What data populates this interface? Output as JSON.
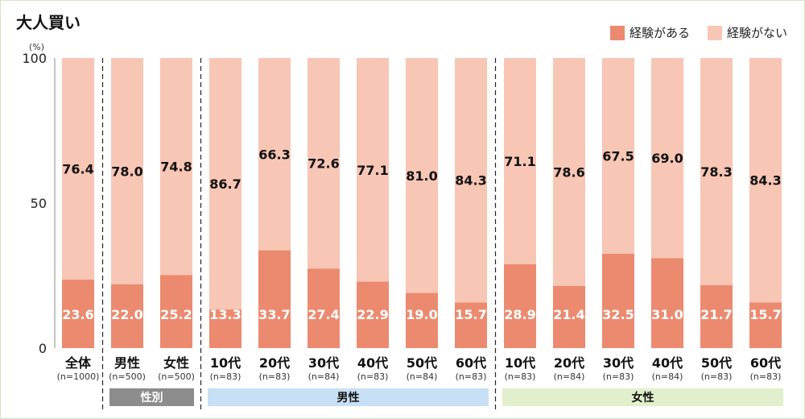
{
  "title": "大人買い",
  "unit_label": "(%)",
  "legend": [
    {
      "label": "経験がある",
      "color": "#ec8a70"
    },
    {
      "label": "経験がない",
      "color": "#f7c6b4"
    }
  ],
  "chart_data": {
    "type": "bar",
    "stacked": true,
    "ylim": [
      0,
      100
    ],
    "yticks": [
      "0",
      "50",
      "100"
    ],
    "categories": [
      "全体",
      "男性",
      "女性",
      "10代",
      "20代",
      "30代",
      "40代",
      "50代",
      "60代",
      "10代",
      "20代",
      "30代",
      "40代",
      "50代",
      "60代"
    ],
    "n_labels": [
      "(n=1000)",
      "(n=500)",
      "(n=500)",
      "(n=83)",
      "(n=83)",
      "(n=84)",
      "(n=83)",
      "(n=84)",
      "(n=83)",
      "(n=83)",
      "(n=84)",
      "(n=83)",
      "(n=84)",
      "(n=83)",
      "(n=83)"
    ],
    "series": [
      {
        "name": "経験がある",
        "color": "#ec8a70",
        "label_color": "#ffffff",
        "values": [
          23.6,
          22.0,
          25.2,
          13.3,
          33.7,
          27.4,
          22.9,
          19.0,
          15.7,
          28.9,
          21.4,
          32.5,
          31.0,
          21.7,
          15.7
        ],
        "labels": [
          "23.6",
          "22.0",
          "25.2",
          "13.3",
          "33.7",
          "27.4",
          "22.9",
          "19.0",
          "15.7",
          "28.9",
          "21.4",
          "32.5",
          "31.0",
          "21.7",
          "15.7"
        ]
      },
      {
        "name": "経験がない",
        "color": "#f7c6b4",
        "label_color": "#111111",
        "values": [
          76.4,
          78.0,
          74.8,
          86.7,
          66.3,
          72.6,
          77.1,
          81.0,
          84.3,
          71.1,
          78.6,
          67.5,
          69.0,
          78.3,
          84.3
        ],
        "labels": [
          "76.4",
          "78.0",
          "74.8",
          "86.7",
          "66.3",
          "72.6",
          "77.1",
          "81.0",
          "84.3",
          "71.1",
          "78.6",
          "67.5",
          "69.0",
          "78.3",
          "84.3"
        ]
      }
    ],
    "groups": [
      {
        "label": "性別",
        "start": 1,
        "end": 2,
        "bg": "#8c8c8c",
        "text_color": "#ffffff"
      },
      {
        "label": "男性",
        "start": 3,
        "end": 8,
        "bg": "#c8e0f5",
        "text_color": "#111111"
      },
      {
        "label": "女性",
        "start": 9,
        "end": 14,
        "bg": "#e2efcc",
        "text_color": "#111111"
      }
    ],
    "dividers_after": [
      0,
      2,
      8
    ]
  }
}
